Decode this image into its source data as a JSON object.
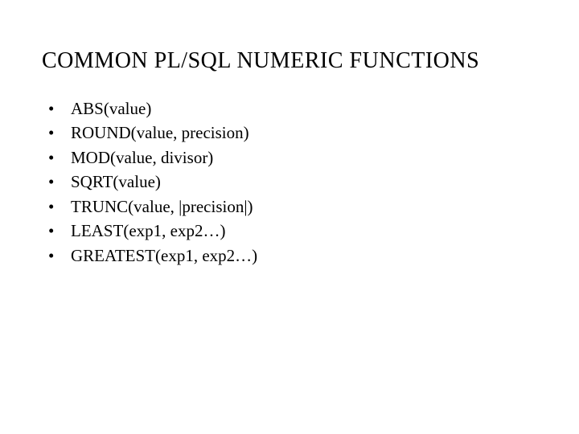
{
  "title": "COMMON  PL/SQL NUMERIC FUNCTIONS",
  "items": [
    "ABS(value)",
    "ROUND(value, precision)",
    "MOD(value, divisor)",
    "SQRT(value)",
    "TRUNC(value, |precision|)",
    "LEAST(exp1, exp2…)",
    "GREATEST(exp1, exp2…)"
  ],
  "bullet_char": "•",
  "colors": {
    "background": "#ffffff",
    "text": "#000000"
  },
  "typography": {
    "title_fontsize": 28,
    "item_fontsize": 21,
    "font_family": "Georgia, Times New Roman, serif"
  }
}
